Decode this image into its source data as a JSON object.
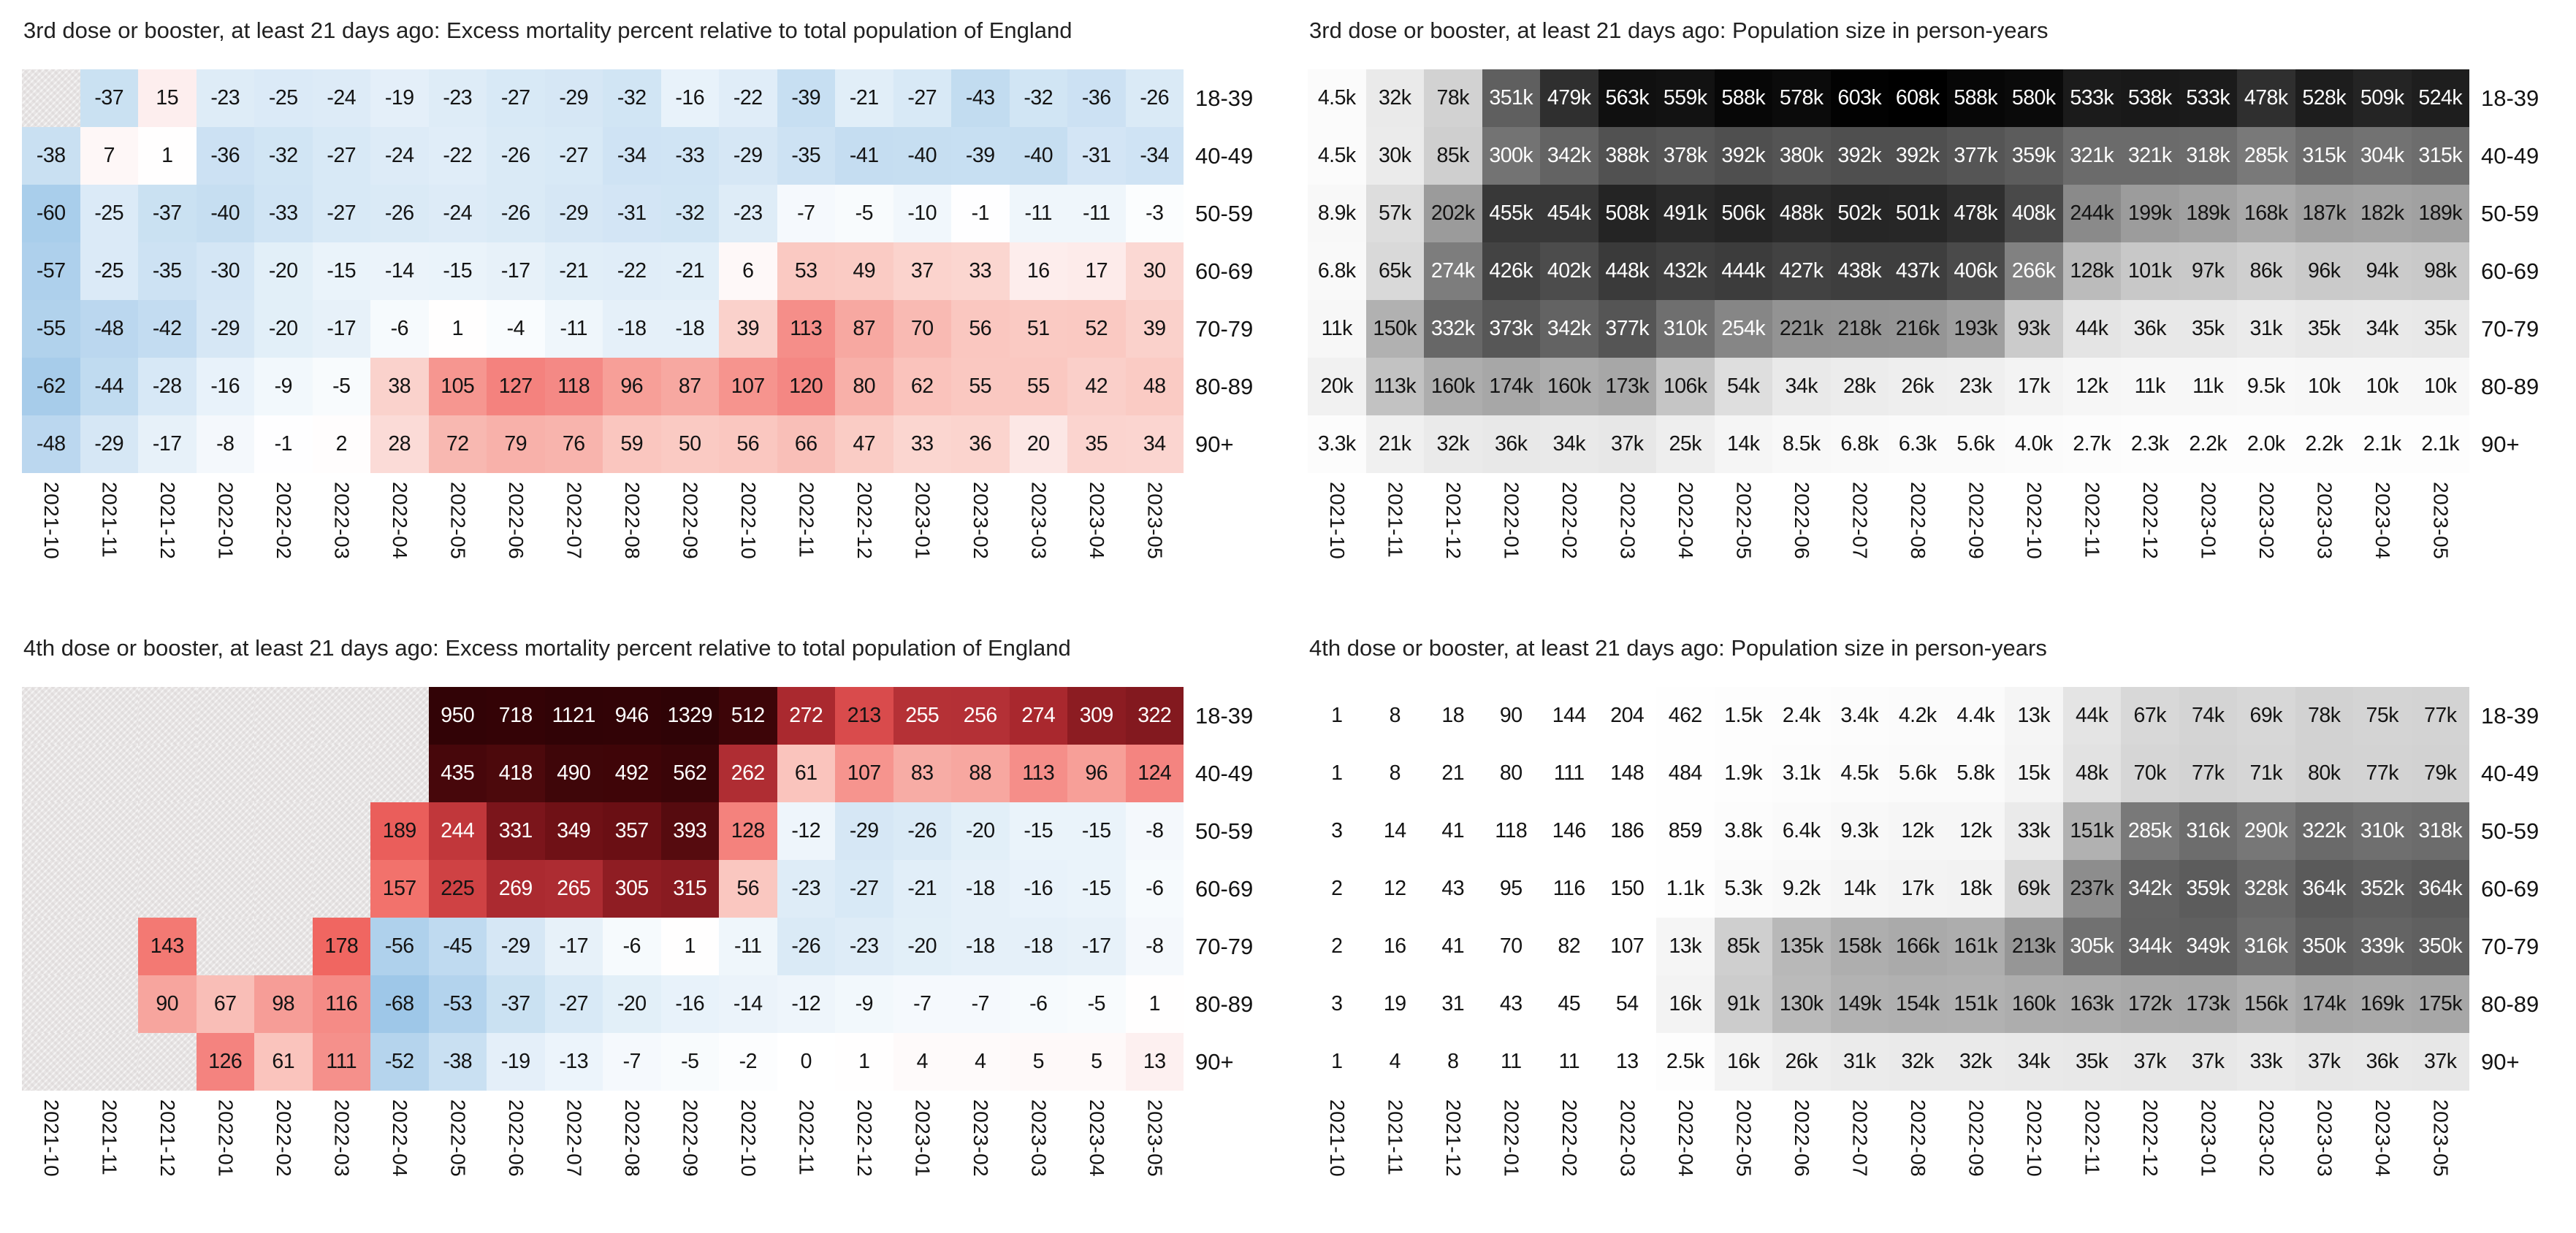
{
  "chart_data": [
    {
      "type": "heatmap",
      "position": "top-left",
      "title": "3rd dose or booster, at least 21 days ago: Excess mortality percent relative to total population of England",
      "x": [
        "2021-10",
        "2021-11",
        "2021-12",
        "2022-01",
        "2022-02",
        "2022-03",
        "2022-04",
        "2022-05",
        "2022-06",
        "2022-07",
        "2022-08",
        "2022-09",
        "2022-10",
        "2022-11",
        "2022-12",
        "2023-01",
        "2023-02",
        "2023-03",
        "2023-04",
        "2023-05"
      ],
      "y": [
        "18-39",
        "40-49",
        "50-59",
        "60-69",
        "70-79",
        "80-89",
        "90+"
      ],
      "values": [
        [
          null,
          -37,
          15,
          -23,
          -25,
          -24,
          -19,
          -23,
          -27,
          -29,
          -32,
          -16,
          -22,
          -39,
          -21,
          -27,
          -43,
          -32,
          -36,
          -26
        ],
        [
          -38,
          7,
          1,
          -36,
          -32,
          -27,
          -24,
          -22,
          -26,
          -27,
          -34,
          -33,
          -29,
          -35,
          -41,
          -40,
          -39,
          -40,
          -31,
          -34
        ],
        [
          -60,
          -25,
          -37,
          -40,
          -33,
          -27,
          -26,
          -24,
          -26,
          -29,
          -31,
          -32,
          -23,
          -7,
          -5,
          -10,
          -1,
          -11,
          -11,
          -3
        ],
        [
          -57,
          -25,
          -35,
          -30,
          -20,
          -15,
          -14,
          -15,
          -17,
          -21,
          -22,
          -21,
          6,
          53,
          49,
          37,
          33,
          16,
          17,
          30
        ],
        [
          -55,
          -48,
          -42,
          -29,
          -20,
          -17,
          -6,
          1,
          -4,
          -11,
          -18,
          -18,
          39,
          113,
          87,
          70,
          56,
          51,
          52,
          39
        ],
        [
          -62,
          -44,
          -28,
          -16,
          -9,
          -5,
          38,
          105,
          127,
          118,
          96,
          87,
          107,
          120,
          80,
          62,
          55,
          55,
          42,
          48
        ],
        [
          -48,
          -29,
          -17,
          -8,
          -1,
          2,
          28,
          72,
          79,
          76,
          59,
          50,
          56,
          66,
          47,
          33,
          36,
          20,
          35,
          34
        ]
      ],
      "scale": {
        "kind": "diverging",
        "blue_limit": 68,
        "blue_max_rgb": [
          158,
          199,
          232
        ],
        "red_stops": [
          [
            0,
            255,
            255,
            255
          ],
          [
            15,
            253,
            238,
            238
          ],
          [
            30,
            251,
            216,
            211
          ],
          [
            45,
            250,
            205,
            198
          ],
          [
            60,
            250,
            197,
            190
          ],
          [
            75,
            248,
            181,
            174
          ],
          [
            90,
            247,
            165,
            158
          ],
          [
            105,
            246,
            150,
            144
          ],
          [
            120,
            244,
            135,
            131
          ],
          [
            140,
            243,
            122,
            116
          ],
          [
            160,
            242,
            112,
            106
          ],
          [
            180,
            240,
            101,
            96
          ],
          [
            200,
            226,
            86,
            85
          ],
          [
            215,
            216,
            73,
            75
          ],
          [
            230,
            203,
            62,
            65
          ],
          [
            245,
            192,
            55,
            59
          ],
          [
            260,
            176,
            46,
            52
          ],
          [
            275,
            168,
            40,
            46
          ],
          [
            295,
            148,
            31,
            37
          ],
          [
            315,
            137,
            27,
            33
          ],
          [
            335,
            120,
            20,
            26
          ],
          [
            360,
            104,
            14,
            19
          ],
          [
            400,
            82,
            10,
            14
          ],
          [
            450,
            66,
            6,
            9
          ],
          [
            530,
            60,
            5,
            8
          ],
          [
            620,
            55,
            4,
            7
          ],
          [
            760,
            51,
            3,
            6
          ],
          [
            1400,
            47,
            3,
            6
          ]
        ],
        "white_text_below_lum": 103,
        "blank_color": "#e7e4e4"
      }
    },
    {
      "type": "heatmap",
      "position": "top-right",
      "title": "3rd dose or booster, at least 21 days ago: Population size in person-years",
      "x": [
        "2021-10",
        "2021-11",
        "2021-12",
        "2022-01",
        "2022-02",
        "2022-03",
        "2022-04",
        "2022-05",
        "2022-06",
        "2022-07",
        "2022-08",
        "2022-09",
        "2022-10",
        "2022-11",
        "2022-12",
        "2023-01",
        "2023-02",
        "2023-03",
        "2023-04",
        "2023-05"
      ],
      "y": [
        "18-39",
        "40-49",
        "50-59",
        "60-69",
        "70-79",
        "80-89",
        "90+"
      ],
      "values": [
        [
          "4.5k",
          "32k",
          "78k",
          "351k",
          "479k",
          "563k",
          "559k",
          "588k",
          "578k",
          "603k",
          "608k",
          "588k",
          "580k",
          "533k",
          "538k",
          "533k",
          "478k",
          "528k",
          "509k",
          "524k"
        ],
        [
          "4.5k",
          "30k",
          "85k",
          "300k",
          "342k",
          "388k",
          "378k",
          "392k",
          "380k",
          "392k",
          "392k",
          "377k",
          "359k",
          "321k",
          "321k",
          "318k",
          "285k",
          "315k",
          "304k",
          "315k"
        ],
        [
          "8.9k",
          "57k",
          "202k",
          "455k",
          "454k",
          "508k",
          "491k",
          "506k",
          "488k",
          "502k",
          "501k",
          "478k",
          "408k",
          "244k",
          "199k",
          "189k",
          "168k",
          "187k",
          "182k",
          "189k"
        ],
        [
          "6.8k",
          "65k",
          "274k",
          "426k",
          "402k",
          "448k",
          "432k",
          "444k",
          "427k",
          "438k",
          "437k",
          "406k",
          "266k",
          "128k",
          "101k",
          "97k",
          "86k",
          "96k",
          "94k",
          "98k"
        ],
        [
          "11k",
          "150k",
          "332k",
          "373k",
          "342k",
          "377k",
          "310k",
          "254k",
          "221k",
          "218k",
          "216k",
          "193k",
          "93k",
          "44k",
          "36k",
          "35k",
          "31k",
          "35k",
          "34k",
          "35k"
        ],
        [
          "20k",
          "113k",
          "160k",
          "174k",
          "160k",
          "173k",
          "106k",
          "54k",
          "34k",
          "28k",
          "26k",
          "23k",
          "17k",
          "12k",
          "11k",
          "11k",
          "9.5k",
          "10k",
          "10k",
          "10k"
        ],
        [
          "3.3k",
          "21k",
          "32k",
          "36k",
          "34k",
          "37k",
          "25k",
          "14k",
          "8.5k",
          "6.8k",
          "6.3k",
          "5.6k",
          "4.0k",
          "2.7k",
          "2.3k",
          "2.2k",
          "2.0k",
          "2.2k",
          "2.1k",
          "2.1k"
        ]
      ],
      "scale": {
        "kind": "gray",
        "max": 608000,
        "gamma": 0.85,
        "white_text_below_gray": 135
      }
    },
    {
      "type": "heatmap",
      "position": "bottom-left",
      "title": "4th dose or booster, at least 21 days ago: Excess mortality percent relative to total population of England",
      "x": [
        "2021-10",
        "2021-11",
        "2021-12",
        "2022-01",
        "2022-02",
        "2022-03",
        "2022-04",
        "2022-05",
        "2022-06",
        "2022-07",
        "2022-08",
        "2022-09",
        "2022-10",
        "2022-11",
        "2022-12",
        "2023-01",
        "2023-02",
        "2023-03",
        "2023-04",
        "2023-05"
      ],
      "y": [
        "18-39",
        "40-49",
        "50-59",
        "60-69",
        "70-79",
        "80-89",
        "90+"
      ],
      "values": [
        [
          null,
          null,
          null,
          null,
          null,
          null,
          null,
          950,
          718,
          1121,
          946,
          1329,
          512,
          272,
          213,
          255,
          256,
          274,
          309,
          322
        ],
        [
          null,
          null,
          null,
          null,
          null,
          null,
          null,
          435,
          418,
          490,
          492,
          562,
          262,
          61,
          107,
          83,
          88,
          113,
          96,
          124
        ],
        [
          null,
          null,
          null,
          null,
          null,
          null,
          189,
          244,
          331,
          349,
          357,
          393,
          128,
          -12,
          -29,
          -26,
          -20,
          -15,
          -15,
          -8
        ],
        [
          null,
          null,
          null,
          null,
          null,
          null,
          157,
          225,
          269,
          265,
          305,
          315,
          56,
          -23,
          -27,
          -21,
          -18,
          -16,
          -15,
          -6
        ],
        [
          null,
          null,
          143,
          null,
          null,
          178,
          -56,
          -45,
          -29,
          -17,
          -6,
          1,
          -11,
          -26,
          -23,
          -20,
          -18,
          -18,
          -17,
          -8
        ],
        [
          null,
          null,
          90,
          67,
          98,
          116,
          -68,
          -53,
          -37,
          -27,
          -20,
          -16,
          -14,
          -12,
          -9,
          -7,
          -7,
          -6,
          -5,
          1
        ],
        [
          null,
          null,
          null,
          126,
          61,
          111,
          -52,
          -38,
          -19,
          -13,
          -7,
          -5,
          -2,
          0,
          1,
          4,
          4,
          5,
          5,
          13
        ]
      ],
      "scale": {
        "kind": "diverging",
        "blue_limit": 68,
        "blue_max_rgb": [
          158,
          199,
          232
        ],
        "red_stops": [
          [
            0,
            255,
            255,
            255
          ],
          [
            15,
            253,
            238,
            238
          ],
          [
            30,
            251,
            216,
            211
          ],
          [
            45,
            250,
            205,
            198
          ],
          [
            60,
            250,
            197,
            190
          ],
          [
            75,
            248,
            181,
            174
          ],
          [
            90,
            247,
            165,
            158
          ],
          [
            105,
            246,
            150,
            144
          ],
          [
            120,
            244,
            135,
            131
          ],
          [
            140,
            243,
            122,
            116
          ],
          [
            160,
            242,
            112,
            106
          ],
          [
            180,
            240,
            101,
            96
          ],
          [
            200,
            226,
            86,
            85
          ],
          [
            215,
            216,
            73,
            75
          ],
          [
            230,
            203,
            62,
            65
          ],
          [
            245,
            192,
            55,
            59
          ],
          [
            260,
            176,
            46,
            52
          ],
          [
            275,
            168,
            40,
            46
          ],
          [
            295,
            148,
            31,
            37
          ],
          [
            315,
            137,
            27,
            33
          ],
          [
            335,
            120,
            20,
            26
          ],
          [
            360,
            104,
            14,
            19
          ],
          [
            400,
            82,
            10,
            14
          ],
          [
            450,
            66,
            6,
            9
          ],
          [
            530,
            60,
            5,
            8
          ],
          [
            620,
            55,
            4,
            7
          ],
          [
            760,
            51,
            3,
            6
          ],
          [
            1400,
            47,
            3,
            6
          ]
        ],
        "white_text_below_lum": 103,
        "blank_color": "#e7e4e4"
      }
    },
    {
      "type": "heatmap",
      "position": "bottom-right",
      "title": "4th dose or booster, at least 21 days ago: Population size in person-years",
      "x": [
        "2021-10",
        "2021-11",
        "2021-12",
        "2022-01",
        "2022-02",
        "2022-03",
        "2022-04",
        "2022-05",
        "2022-06",
        "2022-07",
        "2022-08",
        "2022-09",
        "2022-10",
        "2022-11",
        "2022-12",
        "2023-01",
        "2023-02",
        "2023-03",
        "2023-04",
        "2023-05"
      ],
      "y": [
        "18-39",
        "40-49",
        "50-59",
        "60-69",
        "70-79",
        "80-89",
        "90+"
      ],
      "values": [
        [
          1,
          8,
          18,
          90,
          144,
          204,
          462,
          "1.5k",
          "2.4k",
          "3.4k",
          "4.2k",
          "4.4k",
          "13k",
          "44k",
          "67k",
          "74k",
          "69k",
          "78k",
          "75k",
          "77k"
        ],
        [
          1,
          8,
          21,
          80,
          111,
          148,
          484,
          "1.9k",
          "3.1k",
          "4.5k",
          "5.6k",
          "5.8k",
          "15k",
          "48k",
          "70k",
          "77k",
          "71k",
          "80k",
          "77k",
          "79k"
        ],
        [
          3,
          14,
          41,
          118,
          146,
          186,
          859,
          "3.8k",
          "6.4k",
          "9.3k",
          "12k",
          "12k",
          "33k",
          "151k",
          "285k",
          "316k",
          "290k",
          "322k",
          "310k",
          "318k"
        ],
        [
          2,
          12,
          43,
          95,
          116,
          150,
          "1.1k",
          "5.3k",
          "9.2k",
          "14k",
          "17k",
          "18k",
          "69k",
          "237k",
          "342k",
          "359k",
          "328k",
          "364k",
          "352k",
          "364k"
        ],
        [
          2,
          16,
          41,
          70,
          82,
          107,
          "13k",
          "85k",
          "135k",
          "158k",
          "166k",
          "161k",
          "213k",
          "305k",
          "344k",
          "349k",
          "316k",
          "350k",
          "339k",
          "350k"
        ],
        [
          3,
          19,
          31,
          43,
          45,
          54,
          "16k",
          "91k",
          "130k",
          "149k",
          "154k",
          "151k",
          "160k",
          "163k",
          "172k",
          "173k",
          "156k",
          "174k",
          "169k",
          "175k"
        ],
        [
          1,
          4,
          8,
          11,
          11,
          13,
          "2.5k",
          "16k",
          "26k",
          "31k",
          "32k",
          "32k",
          "34k",
          "35k",
          "37k",
          "37k",
          "33k",
          "37k",
          "36k",
          "37k"
        ]
      ],
      "scale": {
        "kind": "gray",
        "max": 608000,
        "gamma": 0.85,
        "white_text_below_gray": 135
      }
    }
  ]
}
